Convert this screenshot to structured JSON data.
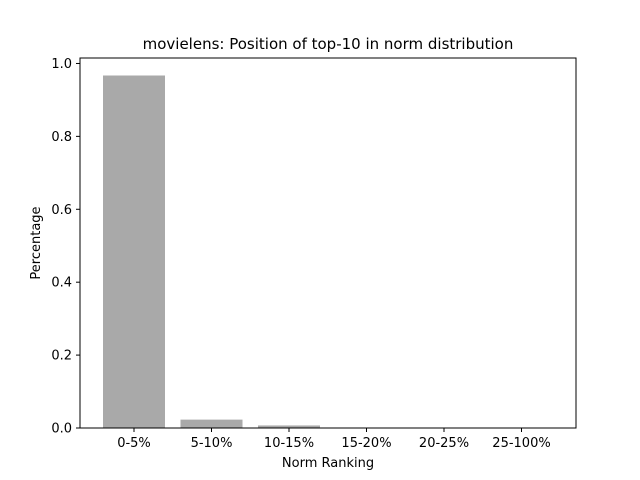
{
  "chart_data": {
    "type": "bar",
    "title": "movielens: Position of top-10 in norm distribution",
    "xlabel": "Norm Ranking",
    "ylabel": "Percentage",
    "categories": [
      "0-5%",
      "5-10%",
      "10-15%",
      "15-20%",
      "20-25%",
      "25-100%"
    ],
    "values": [
      0.967,
      0.023,
      0.007,
      0.001,
      0.001,
      0.001
    ],
    "ylim": [
      0,
      1.015
    ],
    "yticks": [
      0.0,
      0.2,
      0.4,
      0.6,
      0.8,
      1.0
    ],
    "ytick_labels": [
      "0.0",
      "0.2",
      "0.4",
      "0.6",
      "0.8",
      "1.0"
    ],
    "bar_color": "#a9a9a9",
    "grid": false,
    "legend": "none"
  }
}
